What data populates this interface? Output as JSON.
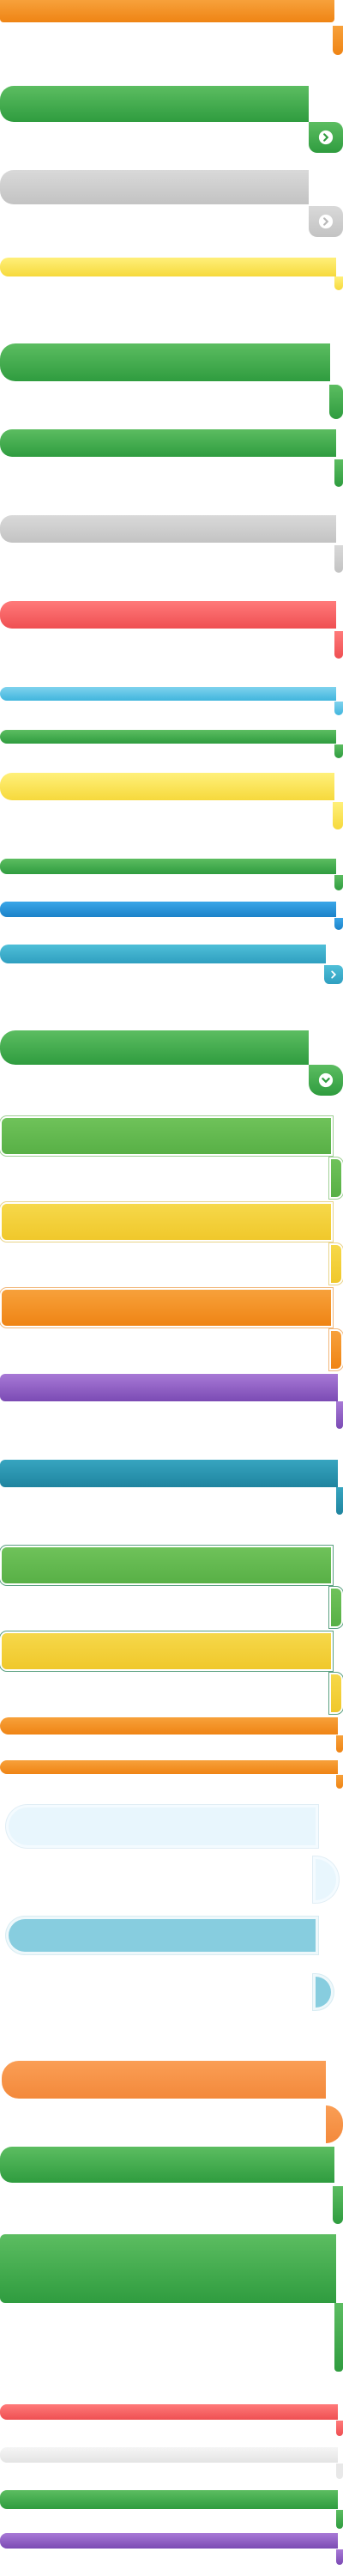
{
  "colors": {
    "orange": "#ef8414",
    "green": "#2f9c3f",
    "gray": "#c3c3c3",
    "yellow": "#f6d93c",
    "red": "#ef4f52",
    "light_blue": "#41b5dd",
    "blue": "#1b82c9",
    "cyan": "#2f9fc0",
    "teal": "#1f849f",
    "purple": "#7b4bb4",
    "light_green": "#58b046",
    "gold": "#f0c82b",
    "pale_blue": "#e8f6fd",
    "sky_blue": "#87cddf",
    "big_orange": "#f3893b"
  },
  "icons": {
    "chevron": "chevron-right-icon",
    "chevron_down": "chevron-down-icon"
  }
}
